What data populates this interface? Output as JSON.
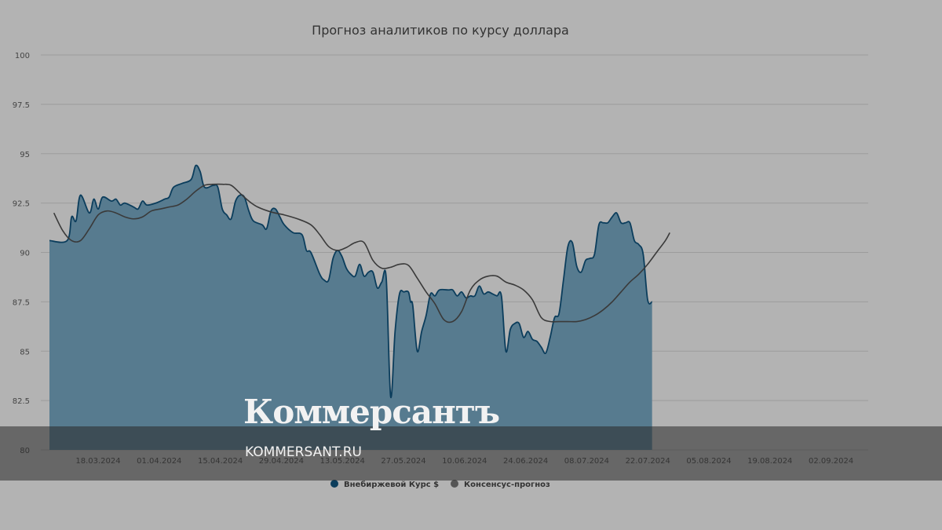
{
  "chart_data": {
    "type": "area",
    "title": "Прогноз аналитиков по курсу доллара",
    "ylim": [
      80,
      100
    ],
    "yticks": [
      "80",
      "82.5",
      "85",
      "87.5",
      "90",
      "92.5",
      "95",
      "97.5",
      "100"
    ],
    "x_tick_labels": [
      "18.03.2024",
      "01.04.2024",
      "15.04.2024",
      "29.04.2024",
      "13.05.2024",
      "27.05.2024",
      "10.06.2024",
      "24.06.2024",
      "08.07.2024",
      "22.07.2024",
      "05.08.2024",
      "19.08.2024",
      "02.09.2024"
    ],
    "x_range_days": [
      0,
      181
    ],
    "x_ticks_days": [
      14,
      28,
      42,
      56,
      70,
      84,
      98,
      112,
      126,
      140,
      154,
      168,
      182
    ],
    "series": [
      {
        "name": "Внебиржевой Курс $",
        "type": "area",
        "color": "#0b3d5c",
        "fill": "#577b8f",
        "points": [
          [
            0,
            90.6
          ],
          [
            4,
            90.6
          ],
          [
            5,
            91.8
          ],
          [
            6,
            91.6
          ],
          [
            7,
            92.9
          ],
          [
            9,
            92.0
          ],
          [
            10,
            92.7
          ],
          [
            11,
            92.2
          ],
          [
            12,
            92.8
          ],
          [
            14,
            92.6
          ],
          [
            15,
            92.7
          ],
          [
            16,
            92.4
          ],
          [
            17,
            92.5
          ],
          [
            19,
            92.3
          ],
          [
            20,
            92.2
          ],
          [
            21,
            92.6
          ],
          [
            22,
            92.4
          ],
          [
            24,
            92.5
          ],
          [
            26,
            92.7
          ],
          [
            27,
            92.8
          ],
          [
            28,
            93.3
          ],
          [
            30,
            93.5
          ],
          [
            32,
            93.7
          ],
          [
            33,
            94.4
          ],
          [
            34,
            94.1
          ],
          [
            35,
            93.3
          ],
          [
            37,
            93.4
          ],
          [
            38,
            93.3
          ],
          [
            39,
            92.2
          ],
          [
            40,
            91.9
          ],
          [
            41,
            91.7
          ],
          [
            42,
            92.6
          ],
          [
            43,
            92.9
          ],
          [
            44,
            92.8
          ],
          [
            45,
            92.1
          ],
          [
            46,
            91.6
          ],
          [
            48,
            91.4
          ],
          [
            49,
            91.2
          ],
          [
            50,
            92.1
          ],
          [
            51,
            92.2
          ],
          [
            52,
            91.8
          ],
          [
            53,
            91.4
          ],
          [
            55,
            91.0
          ],
          [
            57,
            90.9
          ],
          [
            58,
            90.1
          ],
          [
            59,
            90.0
          ],
          [
            61,
            88.9
          ],
          [
            62,
            88.6
          ],
          [
            63,
            88.6
          ],
          [
            64,
            89.7
          ],
          [
            65,
            90.1
          ],
          [
            66,
            89.8
          ],
          [
            67,
            89.2
          ],
          [
            68,
            88.9
          ],
          [
            69,
            88.8
          ],
          [
            70,
            89.4
          ],
          [
            71,
            88.8
          ],
          [
            72,
            89.0
          ],
          [
            73,
            89.0
          ],
          [
            74,
            88.2
          ],
          [
            75,
            88.5
          ],
          [
            76,
            88.7
          ],
          [
            77,
            82.7
          ],
          [
            78,
            86.0
          ],
          [
            79,
            87.9
          ],
          [
            80,
            88.0
          ],
          [
            81,
            88.0
          ],
          [
            81.5,
            87.5
          ],
          [
            82,
            87.3
          ],
          [
            83,
            85.0
          ],
          [
            84,
            86.0
          ],
          [
            85,
            86.8
          ],
          [
            86,
            87.9
          ],
          [
            87,
            87.8
          ],
          [
            88,
            88.1
          ],
          [
            90,
            88.1
          ],
          [
            91,
            88.1
          ],
          [
            92,
            87.8
          ],
          [
            93,
            88.0
          ],
          [
            94,
            87.7
          ],
          [
            95,
            87.8
          ],
          [
            96,
            87.8
          ],
          [
            97,
            88.3
          ],
          [
            98,
            87.9
          ],
          [
            99,
            88.0
          ],
          [
            100,
            87.9
          ],
          [
            101,
            87.8
          ],
          [
            102,
            87.8
          ],
          [
            103,
            85.0
          ],
          [
            104,
            86.1
          ],
          [
            105,
            86.4
          ],
          [
            106,
            86.4
          ],
          [
            107,
            85.7
          ],
          [
            108,
            86.0
          ],
          [
            109,
            85.6
          ],
          [
            110,
            85.5
          ],
          [
            111,
            85.2
          ],
          [
            112,
            84.9
          ],
          [
            113,
            85.7
          ],
          [
            114,
            86.7
          ],
          [
            115,
            86.9
          ],
          [
            116,
            88.6
          ],
          [
            117,
            90.3
          ],
          [
            118,
            90.5
          ],
          [
            119,
            89.3
          ],
          [
            120,
            89.0
          ],
          [
            121,
            89.6
          ],
          [
            122,
            89.7
          ],
          [
            123,
            89.9
          ],
          [
            124,
            91.4
          ],
          [
            125,
            91.5
          ],
          [
            126,
            91.5
          ],
          [
            127,
            91.8
          ],
          [
            128,
            92.0
          ],
          [
            129,
            91.5
          ],
          [
            130,
            91.5
          ],
          [
            131,
            91.5
          ],
          [
            132,
            90.6
          ],
          [
            133,
            90.4
          ],
          [
            134,
            89.9
          ],
          [
            135,
            87.6
          ],
          [
            136,
            87.5
          ]
        ]
      },
      {
        "name": "Консенсус-прогноз",
        "type": "line",
        "color": "#3a3a3a",
        "points": [
          [
            1,
            92.0
          ],
          [
            3,
            91.1
          ],
          [
            5,
            90.6
          ],
          [
            7,
            90.6
          ],
          [
            9,
            91.2
          ],
          [
            11,
            91.9
          ],
          [
            13,
            92.1
          ],
          [
            15,
            92.0
          ],
          [
            17,
            91.8
          ],
          [
            19,
            91.7
          ],
          [
            21,
            91.8
          ],
          [
            23,
            92.1
          ],
          [
            25,
            92.2
          ],
          [
            27,
            92.3
          ],
          [
            29,
            92.4
          ],
          [
            31,
            92.7
          ],
          [
            33,
            93.1
          ],
          [
            35,
            93.4
          ],
          [
            37,
            93.45
          ],
          [
            39,
            93.45
          ],
          [
            41,
            93.4
          ],
          [
            43,
            93.0
          ],
          [
            45,
            92.6
          ],
          [
            47,
            92.3
          ],
          [
            50,
            92.05
          ],
          [
            53,
            91.9
          ],
          [
            56,
            91.7
          ],
          [
            59,
            91.4
          ],
          [
            61,
            90.9
          ],
          [
            63,
            90.3
          ],
          [
            65,
            90.1
          ],
          [
            67,
            90.25
          ],
          [
            69,
            90.5
          ],
          [
            71,
            90.5
          ],
          [
            73,
            89.6
          ],
          [
            75,
            89.2
          ],
          [
            77,
            89.25
          ],
          [
            79,
            89.4
          ],
          [
            81,
            89.35
          ],
          [
            83,
            88.7
          ],
          [
            85,
            88.0
          ],
          [
            87,
            87.4
          ],
          [
            89,
            86.6
          ],
          [
            91,
            86.5
          ],
          [
            93,
            87.0
          ],
          [
            95,
            88.1
          ],
          [
            97,
            88.6
          ],
          [
            99,
            88.8
          ],
          [
            101,
            88.8
          ],
          [
            103,
            88.5
          ],
          [
            105,
            88.35
          ],
          [
            107,
            88.1
          ],
          [
            109,
            87.6
          ],
          [
            111,
            86.7
          ],
          [
            113,
            86.5
          ],
          [
            115,
            86.5
          ],
          [
            117,
            86.5
          ],
          [
            119,
            86.5
          ],
          [
            121,
            86.6
          ],
          [
            123,
            86.8
          ],
          [
            125,
            87.1
          ],
          [
            127,
            87.5
          ],
          [
            129,
            88.0
          ],
          [
            131,
            88.5
          ],
          [
            133,
            88.9
          ],
          [
            135,
            89.4
          ],
          [
            137,
            90.0
          ],
          [
            139,
            90.6
          ],
          [
            140,
            91.0
          ]
        ]
      }
    ],
    "grid": true,
    "legend": "bottom-center"
  },
  "watermark": {
    "logo": "Коммерсантъ",
    "url": "KOMMERSANT.RU"
  }
}
